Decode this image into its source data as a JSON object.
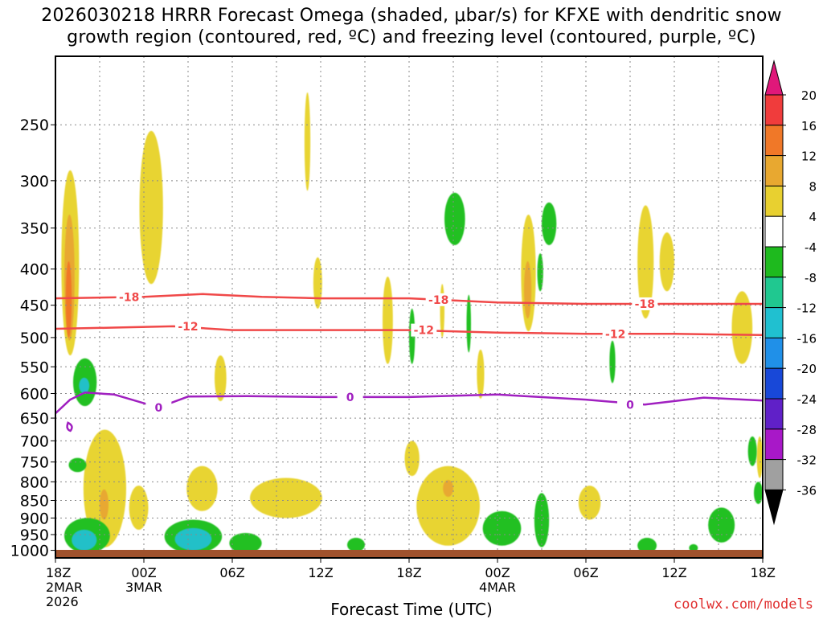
{
  "title": {
    "line1": "2026030218 HRRR Forecast Omega (shaded, μbar/s) for KFXE with dendritic snow",
    "line2": "growth region (contoured, red, ºC) and freezing level (contoured, purple, ºC)"
  },
  "credit": "coolwx.com/models",
  "chart_data": {
    "type": "time-height cross-section",
    "xlabel": "Forecast Time (UTC)",
    "x_range_hours": [
      0,
      48
    ],
    "ylim": [
      1025,
      200
    ],
    "y_scale": "log-pressure",
    "grid": true,
    "x_ticks": [
      {
        "h": 0,
        "label": "18Z",
        "sub": [
          "2MAR",
          "2026"
        ]
      },
      {
        "h": 6,
        "label": "00Z",
        "sub": [
          "3MAR"
        ]
      },
      {
        "h": 12,
        "label": "06Z",
        "sub": []
      },
      {
        "h": 18,
        "label": "12Z",
        "sub": []
      },
      {
        "h": 24,
        "label": "18Z",
        "sub": []
      },
      {
        "h": 30,
        "label": "00Z",
        "sub": [
          "4MAR"
        ]
      },
      {
        "h": 36,
        "label": "06Z",
        "sub": []
      },
      {
        "h": 42,
        "label": "12Z",
        "sub": []
      },
      {
        "h": 48,
        "label": "18Z",
        "sub": []
      }
    ],
    "y_ticks": [
      250,
      300,
      350,
      400,
      450,
      500,
      550,
      600,
      650,
      700,
      750,
      800,
      850,
      900,
      950,
      1000
    ],
    "colorbar": {
      "labels": [
        "20",
        "16",
        "12",
        "8",
        "4",
        "-4",
        "-8",
        "-12",
        "-16",
        "-20",
        "-24",
        "-28",
        "-32",
        "-36"
      ],
      "colors": [
        "#f03c3c",
        "#f07828",
        "#e8a830",
        "#e8d030",
        "#ffffff",
        "#1eba1e",
        "#20c890",
        "#20c0d0",
        "#2090e8",
        "#1848d8",
        "#6020c8",
        "#a818c8",
        "#a0a0a0"
      ],
      "top_arrow": "#e0187a",
      "bottom_arrow": "#000000"
    },
    "contours": [
      {
        "name": "-18",
        "color": "#f04848",
        "level_C": -18,
        "points": [
          [
            0,
            440
          ],
          [
            6,
            438
          ],
          [
            10,
            434
          ],
          [
            14,
            438
          ],
          [
            18,
            440
          ],
          [
            24,
            440
          ],
          [
            30,
            446
          ],
          [
            36,
            448
          ],
          [
            42,
            448
          ],
          [
            48,
            448
          ]
        ],
        "labels": [
          [
            5,
            438
          ],
          [
            26,
            442
          ],
          [
            40,
            448
          ]
        ]
      },
      {
        "name": "-12",
        "color": "#f04848",
        "level_C": -12,
        "points": [
          [
            0,
            486
          ],
          [
            4,
            484
          ],
          [
            8,
            482
          ],
          [
            12,
            488
          ],
          [
            18,
            488
          ],
          [
            24,
            488
          ],
          [
            30,
            492
          ],
          [
            36,
            494
          ],
          [
            42,
            494
          ],
          [
            48,
            496
          ]
        ],
        "labels": [
          [
            9,
            482
          ],
          [
            25,
            488
          ],
          [
            38,
            494
          ]
        ]
      },
      {
        "name": "0",
        "color": "#a020c0",
        "level_C": 0,
        "points": [
          [
            0,
            640
          ],
          [
            1,
            612
          ],
          [
            2,
            598
          ],
          [
            4,
            602
          ],
          [
            7,
            628
          ],
          [
            9,
            606
          ],
          [
            13,
            605
          ],
          [
            18,
            607
          ],
          [
            24,
            607
          ],
          [
            30,
            602
          ],
          [
            36,
            612
          ],
          [
            40,
            622
          ],
          [
            44,
            608
          ],
          [
            48,
            614
          ]
        ],
        "labels": [
          [
            7,
            628
          ],
          [
            20,
            607
          ],
          [
            39,
            622
          ]
        ]
      }
    ],
    "omega_regions": [
      {
        "value": 5,
        "h": [
          0.4,
          1.6
        ],
        "p": [
          290,
          530
        ]
      },
      {
        "value": 9,
        "h": [
          0.6,
          1.3
        ],
        "p": [
          335,
          505
        ]
      },
      {
        "value": 13,
        "h": [
          0.7,
          1.1
        ],
        "p": [
          390,
          500
        ]
      },
      {
        "value": 5,
        "h": [
          5.7,
          7.3
        ],
        "p": [
          255,
          420
        ]
      },
      {
        "value": 5,
        "h": [
          16.9,
          17.3
        ],
        "p": [
          225,
          310
        ]
      },
      {
        "value": 5,
        "h": [
          17.5,
          18.1
        ],
        "p": [
          385,
          455
        ]
      },
      {
        "value": 5,
        "h": [
          10.8,
          11.6
        ],
        "p": [
          530,
          615
        ]
      },
      {
        "value": 5,
        "h": [
          22.2,
          22.9
        ],
        "p": [
          410,
          545
        ]
      },
      {
        "value": 5,
        "h": [
          26.1,
          26.4
        ],
        "p": [
          420,
          500
        ]
      },
      {
        "value": 5,
        "h": [
          28.6,
          29.1
        ],
        "p": [
          520,
          610
        ]
      },
      {
        "value": 5,
        "h": [
          31.6,
          32.6
        ],
        "p": [
          335,
          490
        ]
      },
      {
        "value": 9,
        "h": [
          31.8,
          32.3
        ],
        "p": [
          390,
          470
        ]
      },
      {
        "value": 5,
        "h": [
          39.5,
          40.6
        ],
        "p": [
          325,
          470
        ]
      },
      {
        "value": 5,
        "h": [
          41.0,
          42.0
        ],
        "p": [
          355,
          430
        ]
      },
      {
        "value": 5,
        "h": [
          45.9,
          47.3
        ],
        "p": [
          430,
          545
        ]
      },
      {
        "value": 5,
        "h": [
          1.9,
          4.8
        ],
        "p": [
          675,
          990
        ]
      },
      {
        "value": 10,
        "h": [
          3.0,
          3.6
        ],
        "p": [
          820,
          905
        ]
      },
      {
        "value": 5,
        "h": [
          5.0,
          6.3
        ],
        "p": [
          810,
          935
        ]
      },
      {
        "value": 5,
        "h": [
          8.9,
          11.0
        ],
        "p": [
          760,
          880
        ]
      },
      {
        "value": 5,
        "h": [
          13.2,
          18.1
        ],
        "p": [
          790,
          900
        ]
      },
      {
        "value": 5,
        "h": [
          23.7,
          24.7
        ],
        "p": [
          700,
          785
        ]
      },
      {
        "value": 5,
        "h": [
          24.5,
          28.8
        ],
        "p": [
          760,
          985
        ]
      },
      {
        "value": 10,
        "h": [
          26.3,
          27.0
        ],
        "p": [
          795,
          840
        ]
      },
      {
        "value": 5,
        "h": [
          35.5,
          37.0
        ],
        "p": [
          810,
          905
        ]
      },
      {
        "value": 5,
        "h": [
          47.6,
          48.0
        ],
        "p": [
          690,
          790
        ]
      },
      {
        "value": -6,
        "h": [
          26.4,
          27.8
        ],
        "p": [
          312,
          370
        ]
      },
      {
        "value": -6,
        "h": [
          33.0,
          34.0
        ],
        "p": [
          322,
          370
        ]
      },
      {
        "value": -6,
        "h": [
          24.0,
          24.4
        ],
        "p": [
          455,
          545
        ]
      },
      {
        "value": -6,
        "h": [
          27.9,
          28.2
        ],
        "p": [
          435,
          525
        ]
      },
      {
        "value": -6,
        "h": [
          32.7,
          33.1
        ],
        "p": [
          380,
          430
        ]
      },
      {
        "value": -6,
        "h": [
          37.6,
          38.0
        ],
        "p": [
          505,
          580
        ]
      },
      {
        "value": -6,
        "h": [
          1.2,
          2.8
        ],
        "p": [
          535,
          625
        ]
      },
      {
        "value": -14,
        "h": [
          1.6,
          2.3
        ],
        "p": [
          570,
          600
        ]
      },
      {
        "value": -6,
        "h": [
          0.9,
          2.1
        ],
        "p": [
          740,
          775
        ]
      },
      {
        "value": -6,
        "h": [
          0.6,
          3.7
        ],
        "p": [
          900,
          1010
        ]
      },
      {
        "value": -14,
        "h": [
          1.1,
          2.8
        ],
        "p": [
          935,
          1000
        ]
      },
      {
        "value": -6,
        "h": [
          7.4,
          11.3
        ],
        "p": [
          905,
          1010
        ]
      },
      {
        "value": -14,
        "h": [
          8.1,
          10.6
        ],
        "p": [
          930,
          1000
        ]
      },
      {
        "value": -6,
        "h": [
          11.8,
          14.0
        ],
        "p": [
          945,
          1010
        ]
      },
      {
        "value": -6,
        "h": [
          19.8,
          21.0
        ],
        "p": [
          960,
          1005
        ]
      },
      {
        "value": -6,
        "h": [
          29.0,
          31.6
        ],
        "p": [
          880,
          985
        ]
      },
      {
        "value": -6,
        "h": [
          32.5,
          33.5
        ],
        "p": [
          830,
          990
        ]
      },
      {
        "value": -6,
        "h": [
          39.5,
          40.8
        ],
        "p": [
          960,
          1010
        ]
      },
      {
        "value": -6,
        "h": [
          43.0,
          43.6
        ],
        "p": [
          980,
          1005
        ]
      },
      {
        "value": -6,
        "h": [
          44.3,
          46.1
        ],
        "p": [
          870,
          975
        ]
      },
      {
        "value": -6,
        "h": [
          47.0,
          47.6
        ],
        "p": [
          690,
          760
        ]
      },
      {
        "value": -6,
        "h": [
          47.4,
          48.0
        ],
        "p": [
          800,
          860
        ]
      }
    ]
  }
}
